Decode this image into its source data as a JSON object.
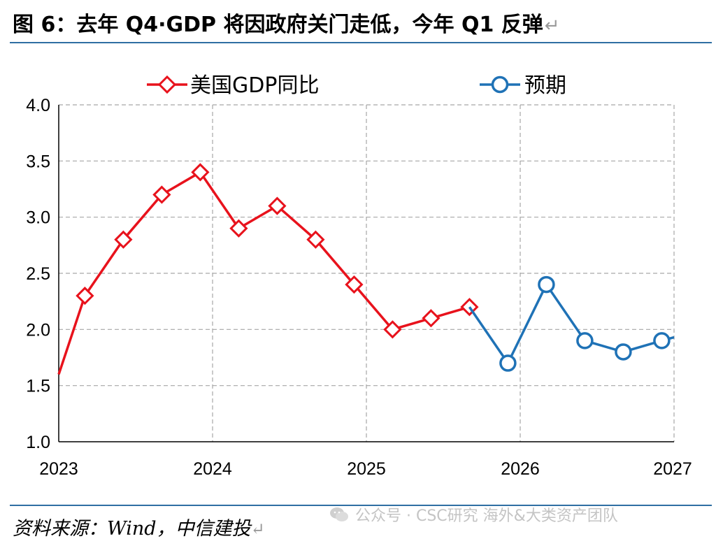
{
  "title": "图 6：去年 Q4·GDP 将因政府关门走低，今年 Q1 反弹",
  "return_mark": "↵",
  "source": "资料来源：Wind，中信建投",
  "watermark": "公众号 · CSC研究 海外&大类资产团队",
  "colors": {
    "actual": "#e8121c",
    "forecast": "#1f72b6",
    "grid": "#a6a6a6",
    "rule": "#2f6fa3"
  },
  "chart_data": {
    "type": "line",
    "title": "",
    "xlabel": "",
    "ylabel": "",
    "ylim": [
      1.0,
      4.0
    ],
    "xlim": [
      2023.0,
      2027.0
    ],
    "y_ticks": [
      "1.0",
      "1.5",
      "2.0",
      "2.5",
      "3.0",
      "3.5",
      "4.0"
    ],
    "x_ticks": [
      "2023",
      "2024",
      "2025",
      "2026",
      "2027"
    ],
    "grid": true,
    "legend_position": "top",
    "series": [
      {
        "name": "美国GDP同比",
        "marker": "diamond",
        "x": [
          2023.0,
          2023.17,
          2023.42,
          2023.67,
          2023.92,
          2024.17,
          2024.42,
          2024.67,
          2024.92,
          2025.17,
          2025.42,
          2025.67
        ],
        "values": [
          1.6,
          2.3,
          2.8,
          3.2,
          3.4,
          2.9,
          3.1,
          2.8,
          2.4,
          2.0,
          2.1,
          2.2
        ],
        "marker_from_index": 1
      },
      {
        "name": "预期",
        "marker": "circle",
        "x": [
          2025.67,
          2025.92,
          2026.17,
          2026.42,
          2026.67,
          2026.92,
          2027.0
        ],
        "values": [
          2.2,
          1.7,
          2.4,
          1.9,
          1.8,
          1.9,
          1.93
        ],
        "marker_from_index": 1,
        "marker_to_index": 5
      }
    ]
  }
}
